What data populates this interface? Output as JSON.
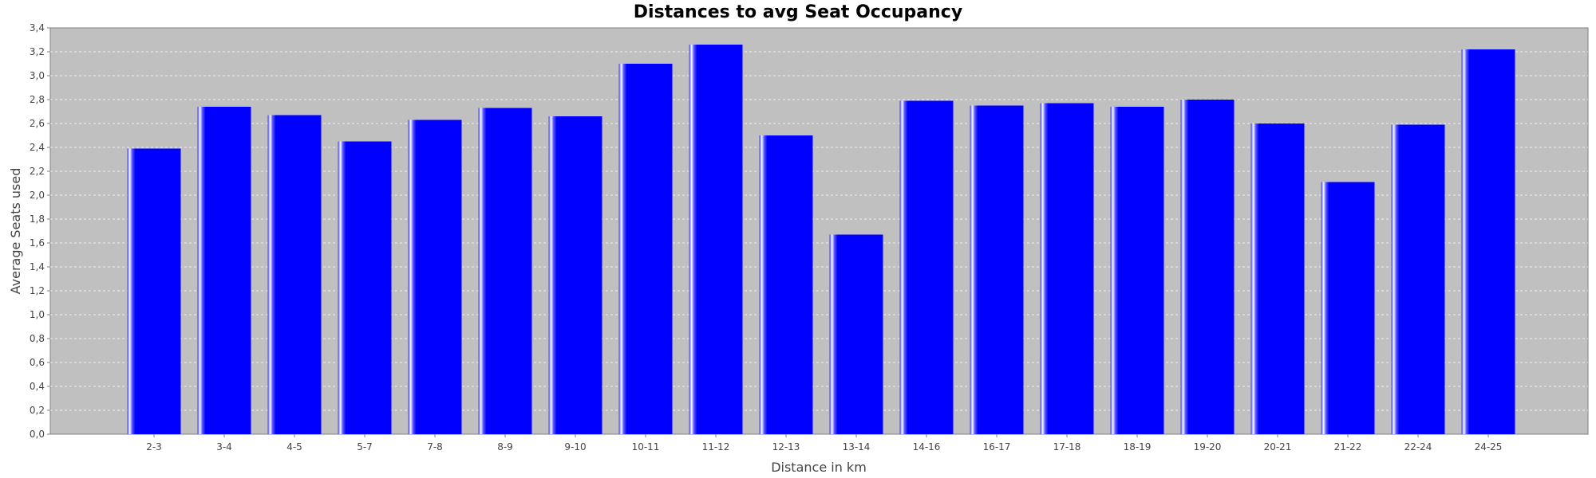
{
  "chart_data": {
    "type": "bar",
    "title": "Distances to avg Seat Occupancy",
    "xlabel": "Distance in km",
    "ylabel": "Average Seats used",
    "categories": [
      "2-3",
      "3-4",
      "4-5",
      "5-7",
      "7-8",
      "8-9",
      "9-10",
      "10-11",
      "11-12",
      "12-13",
      "13-14",
      "14-16",
      "16-17",
      "17-18",
      "18-19",
      "19-20",
      "20-21",
      "21-22",
      "22-24",
      "24-25"
    ],
    "values": [
      2.39,
      2.74,
      2.67,
      2.45,
      2.63,
      2.73,
      2.66,
      3.1,
      3.26,
      2.5,
      1.67,
      2.79,
      2.75,
      2.77,
      2.74,
      2.8,
      2.6,
      2.11,
      2.59,
      3.22
    ],
    "ylim": [
      0,
      3.4
    ],
    "yticks": [
      "0,0",
      "0,2",
      "0,4",
      "0,6",
      "0,8",
      "1,0",
      "1,2",
      "1,4",
      "1,6",
      "1,8",
      "2,0",
      "2,2",
      "2,4",
      "2,6",
      "2,8",
      "3,0",
      "3,2",
      "3,4"
    ],
    "grid": true,
    "legend": "none",
    "colors": {
      "bar": "#0000ff",
      "plot_background": "#c0c0c0",
      "gridline": "#ffffff"
    }
  }
}
